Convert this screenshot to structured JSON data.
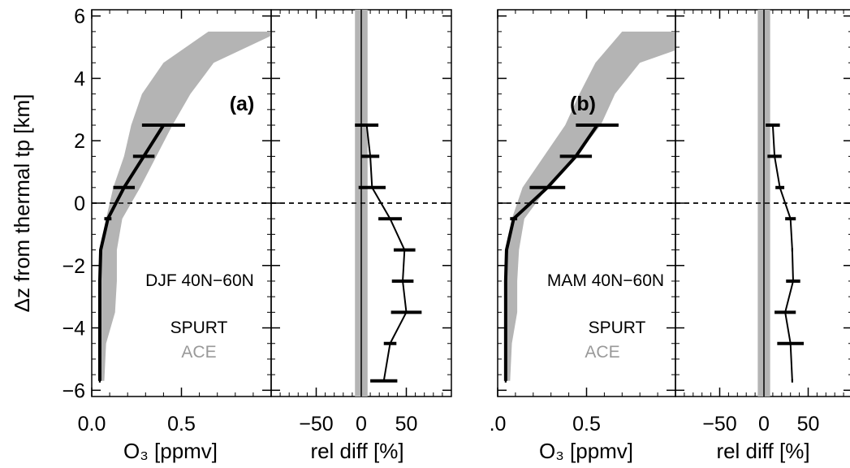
{
  "chart_data": {
    "type": "line",
    "ylabel": "Δz from thermal tp [km]",
    "ylim": [
      -6.2,
      6.2
    ],
    "y_ticks": [
      -6,
      -4,
      -2,
      0,
      2,
      4,
      6
    ],
    "tropopause_dz": 0,
    "colors": {
      "spurt": "#000000",
      "ace": "#b4b4b4"
    },
    "panels": [
      {
        "label": "(a)",
        "season": "DJF  40N−60N",
        "legend": {
          "spurt": "SPURT",
          "ace": "ACE"
        },
        "o3": {
          "xlabel": "O₃ [ppmv]",
          "xlim": [
            0,
            1.0
          ],
          "x_ticks": [
            0.0,
            0.5
          ],
          "x_tick_labels": [
            "0.0",
            "0.5"
          ],
          "ace_band": {
            "dz": [
              -5.7,
              -4.5,
              -3.5,
              -2.5,
              -1.5,
              -0.5,
              0.5,
              1.5,
              2.5,
              3.5,
              4.5,
              5.5
            ],
            "low": [
              0.04,
              0.04,
              0.04,
              0.04,
              0.05,
              0.08,
              0.12,
              0.18,
              0.22,
              0.28,
              0.4,
              0.65
            ],
            "high": [
              0.07,
              0.08,
              0.13,
              0.14,
              0.14,
              0.17,
              0.27,
              0.36,
              0.45,
              0.55,
              0.68,
              1.05
            ]
          },
          "spurt": {
            "dz": [
              -5.7,
              -4.5,
              -3.5,
              -2.5,
              -1.5,
              -0.5,
              0.5,
              1.5,
              2.5
            ],
            "mean": [
              0.045,
              0.045,
              0.045,
              0.045,
              0.05,
              0.09,
              0.18,
              0.29,
              0.4
            ],
            "err": [
              0.005,
              0.005,
              0.005,
              0.005,
              0.005,
              0.02,
              0.06,
              0.06,
              0.12
            ]
          }
        },
        "reldiff": {
          "xlabel": "rel diff [%]",
          "xlim": [
            -100,
            100
          ],
          "x_ticks": [
            -50,
            0,
            50
          ],
          "x_tick_labels": [
            "−50",
            "0",
            "50"
          ],
          "shade_halfwidth": 7,
          "profile": {
            "dz": [
              -5.7,
              -4.5,
              -3.5,
              -2.5,
              -1.5,
              -0.5,
              0.5,
              1.5,
              2.5
            ],
            "mean": [
              25,
              32,
              50,
              46,
              48,
              32,
              12,
              10,
              6
            ],
            "err": [
              15,
              7,
              17,
              12,
              12,
              13,
              15,
              10,
              13
            ]
          }
        }
      },
      {
        "label": "(b)",
        "season": "MAM  40N−60N",
        "legend": {
          "spurt": "SPURT",
          "ace": "ACE"
        },
        "o3": {
          "xlabel": "O₃ [ppmv]",
          "xlim": [
            0,
            1.0
          ],
          "x_ticks": [
            0.0,
            0.5
          ],
          "x_tick_labels": [
            ".0",
            "0.5"
          ],
          "ace_band": {
            "dz": [
              -5.7,
              -4.5,
              -3.5,
              -2.5,
              -1.5,
              -0.5,
              0.5,
              1.5,
              2.5,
              3.5,
              4.5,
              5.5
            ],
            "low": [
              0.04,
              0.04,
              0.04,
              0.04,
              0.05,
              0.08,
              0.14,
              0.26,
              0.38,
              0.46,
              0.55,
              0.7
            ],
            "high": [
              0.07,
              0.08,
              0.11,
              0.11,
              0.12,
              0.15,
              0.28,
              0.44,
              0.58,
              0.66,
              0.8,
              1.3
            ]
          },
          "spurt": {
            "dz": [
              -5.7,
              -4.5,
              -3.5,
              -2.5,
              -1.5,
              -0.5,
              0.5,
              1.5,
              2.5
            ],
            "mean": [
              0.045,
              0.045,
              0.045,
              0.045,
              0.05,
              0.09,
              0.28,
              0.44,
              0.56
            ],
            "err": [
              0.005,
              0.005,
              0.005,
              0.005,
              0.005,
              0.02,
              0.1,
              0.09,
              0.12
            ]
          }
        },
        "reldiff": {
          "xlabel": "rel diff [%]",
          "xlim": [
            -100,
            100
          ],
          "x_ticks": [
            -50,
            0,
            50
          ],
          "x_tick_labels": [
            "−50",
            "0",
            "50"
          ],
          "shade_halfwidth": 7,
          "profile": {
            "dz": [
              -5.7,
              -4.5,
              -3.5,
              -2.5,
              -1.5,
              -0.5,
              0.5,
              1.5,
              2.5
            ],
            "mean": [
              32,
              30,
              24,
              33,
              32,
              30,
              18,
              12,
              10
            ],
            "err": [
              1,
              15,
              12,
              8,
              1,
              6,
              5,
              8,
              8
            ]
          }
        }
      }
    ]
  }
}
